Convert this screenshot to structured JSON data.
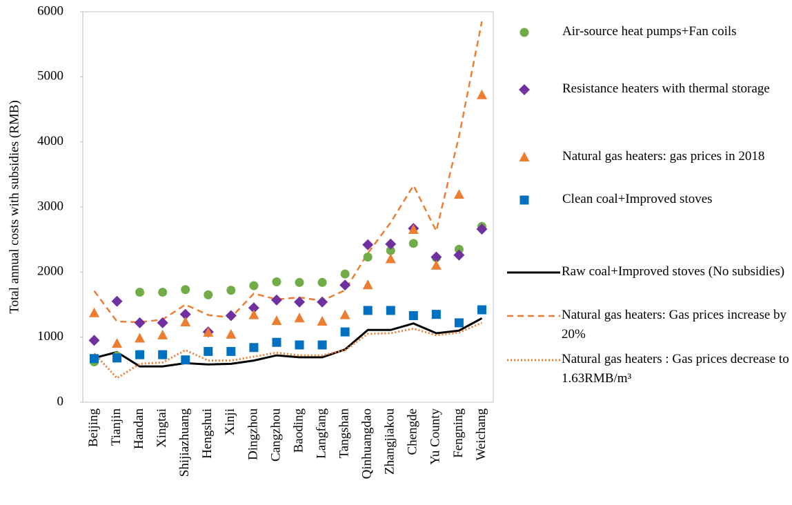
{
  "chart_data": {
    "type": "combo",
    "y_label": "Total annual costs with subsidies (RMB)",
    "categories": [
      "Beijing",
      "Tianjin",
      "Handan",
      "Xingtai",
      "Shijiazhuang",
      "Hengshui",
      "Xinji",
      "Dingzhou",
      "Cangzhou",
      "Baoding",
      "Langfang",
      "Tangshan",
      "Qinhuangdao",
      "Zhangjiakou",
      "Chengde",
      "Yu County",
      "Fengning",
      "Weichang"
    ],
    "ylim": [
      0,
      6000
    ],
    "yticks": [
      0,
      1000,
      2000,
      3000,
      4000,
      5000,
      6000
    ],
    "grid": false,
    "series": [
      {
        "name": "Air-source heat pumps+Fan coils",
        "color": "#70ad47",
        "kind": "scatter",
        "marker": "circle",
        "values": [
          620,
          710,
          1690,
          1690,
          1730,
          1650,
          1720,
          1790,
          1850,
          1840,
          1840,
          1970,
          2230,
          2330,
          2440,
          2220,
          2350,
          2700
        ]
      },
      {
        "name": "Resistance heaters with thermal storage",
        "color": "#7030a0",
        "kind": "scatter",
        "marker": "diamond",
        "values": [
          950,
          1550,
          1220,
          1220,
          1350,
          1080,
          1330,
          1450,
          1570,
          1540,
          1540,
          1800,
          2420,
          2430,
          2670,
          2230,
          2260,
          2660
        ]
      },
      {
        "name": "Natural gas heaters: gas prices in 2018",
        "color": "#ed7d31",
        "kind": "scatter",
        "marker": "triangle",
        "values": [
          1370,
          900,
          980,
          1030,
          1230,
          1070,
          1040,
          1340,
          1250,
          1290,
          1240,
          1340,
          1800,
          2200,
          2650,
          2100,
          3190,
          4720
        ]
      },
      {
        "name": "Clean coal+Improved stoves",
        "color": "#0070c0",
        "kind": "scatter",
        "marker": "square",
        "values": [
          670,
          680,
          730,
          730,
          650,
          780,
          780,
          840,
          920,
          880,
          880,
          1080,
          1410,
          1410,
          1330,
          1350,
          1220,
          1420
        ]
      },
      {
        "name": "Raw coal+Improved stoves (No subsidies)",
        "color": "#000000",
        "kind": "line",
        "dash": "solid",
        "values": [
          680,
          770,
          550,
          550,
          600,
          580,
          590,
          640,
          720,
          690,
          690,
          810,
          1110,
          1110,
          1210,
          1060,
          1100,
          1290
        ]
      },
      {
        "name": "Natural gas heaters: Gas prices increase by 20%",
        "color": "#ed7d31",
        "kind": "line",
        "dash": "dashed",
        "values": [
          1710,
          1240,
          1230,
          1270,
          1500,
          1340,
          1300,
          1670,
          1580,
          1610,
          1560,
          1720,
          2290,
          2760,
          3330,
          2630,
          4090,
          5850
        ]
      },
      {
        "name": "Natural gas heaters : Gas prices decrease to 1.63RMB/m³",
        "color": "#ed7d31",
        "kind": "line",
        "dash": "dotted",
        "values": [
          750,
          370,
          590,
          610,
          800,
          640,
          640,
          700,
          760,
          720,
          720,
          800,
          1050,
          1060,
          1130,
          1030,
          1070,
          1220
        ]
      }
    ]
  }
}
